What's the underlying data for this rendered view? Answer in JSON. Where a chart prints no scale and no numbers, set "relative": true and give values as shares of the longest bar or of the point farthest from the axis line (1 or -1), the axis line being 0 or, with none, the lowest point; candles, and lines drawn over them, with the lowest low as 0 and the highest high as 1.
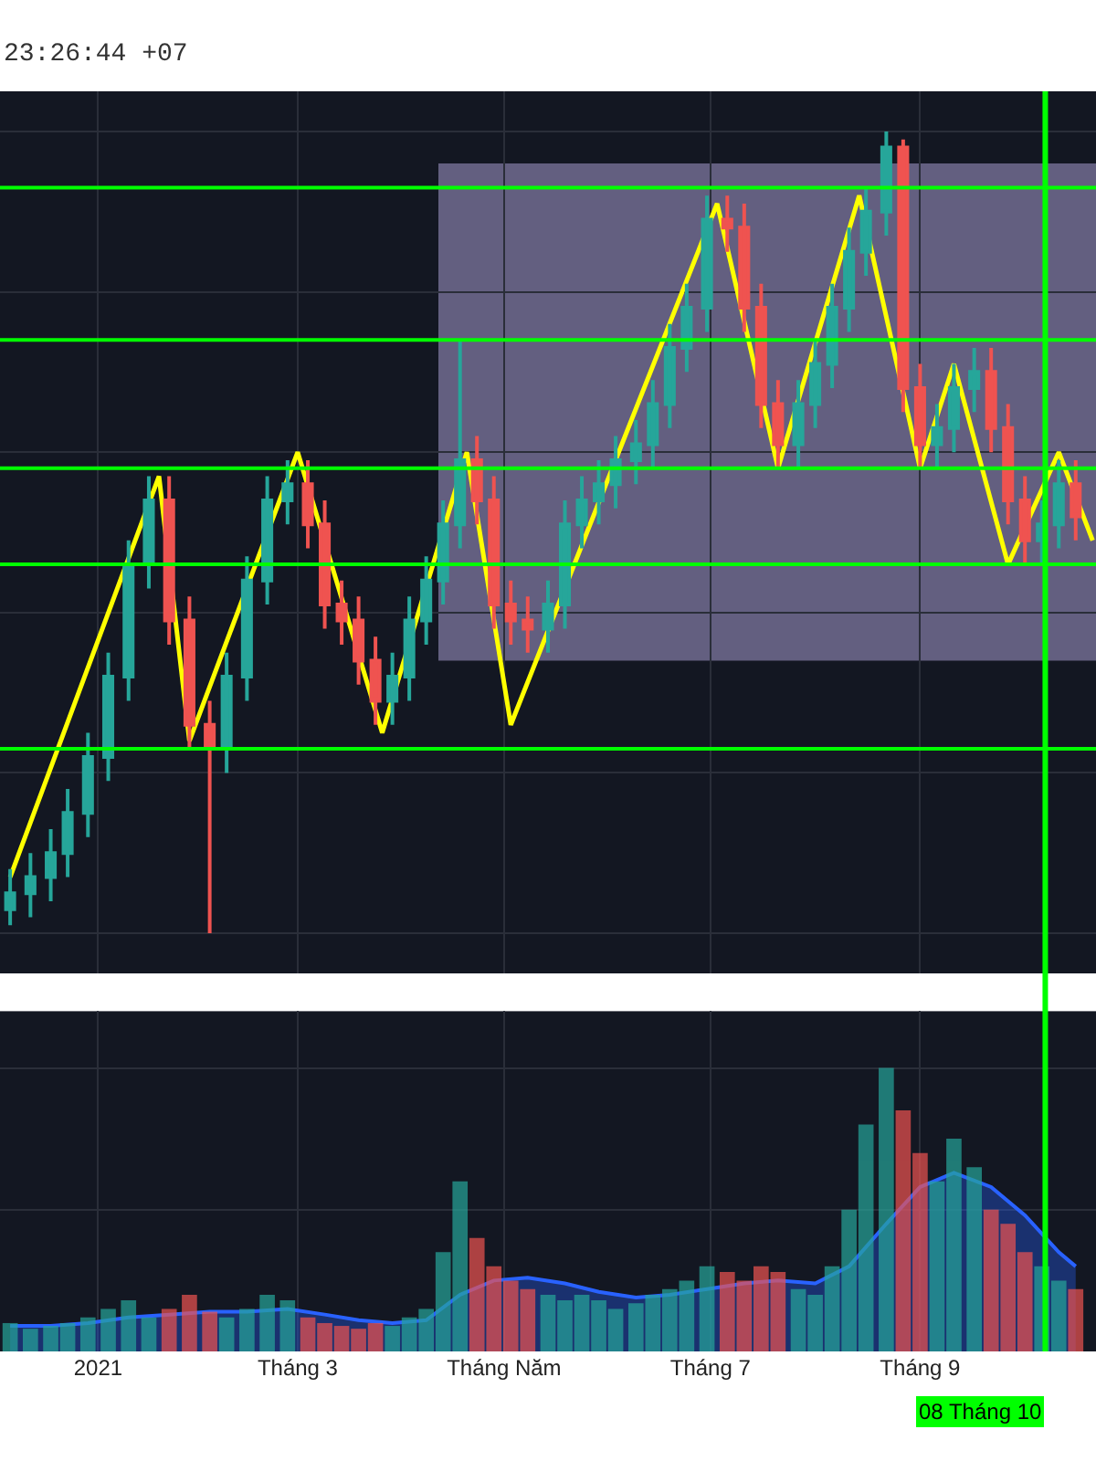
{
  "chart_data": [
    {
      "type": "candlestick",
      "relative": true,
      "grid": true,
      "tick_labels": false,
      "annotations": [
        "23:26:44 +07"
      ],
      "colors": [
        "#26a69a",
        "#26a69a",
        "#26a69a",
        "#26a69a",
        "#26a69a",
        "#26a69a",
        "#26a69a",
        "#26a69a",
        "#ef5350",
        "#ef5350",
        "#ef5350",
        "#26a69a",
        "#26a69a",
        "#26a69a",
        "#26a69a",
        "#ef5350",
        "#ef5350",
        "#ef5350",
        "#ef5350",
        "#ef5350",
        "#26a69a",
        "#26a69a",
        "#26a69a",
        "#26a69a",
        "#26a69a",
        "#ef5350",
        "#ef5350",
        "#ef5350",
        "#ef5350",
        "#26a69a",
        "#26a69a",
        "#26a69a",
        "#26a69a",
        "#26a69a",
        "#26a69a",
        "#26a69a",
        "#26a69a",
        "#26a69a",
        "#26a69a",
        "#ef5350",
        "#ef5350",
        "#ef5350",
        "#ef5350",
        "#26a69a",
        "#26a69a",
        "#26a69a",
        "#26a69a",
        "#26a69a",
        "#26a69a",
        "#ef5350",
        "#ef5350",
        "#26a69a",
        "#26a69a",
        "#26a69a",
        "#ef5350",
        "#ef5350",
        "#ef5350",
        "#26a69a",
        "#26a69a",
        "#ef5350"
      ],
      "x": [
        "2020-12-06",
        "2020-12-12",
        "2020-12-18",
        "2020-12-23",
        "2020-12-29",
        "2021-01-04",
        "2021-01-10",
        "2021-01-16",
        "2021-01-22",
        "2021-01-28",
        "2021-02-03",
        "2021-02-08",
        "2021-02-14",
        "2021-02-20",
        "2021-02-26",
        "2021-03-04",
        "2021-03-09",
        "2021-03-14",
        "2021-03-19",
        "2021-03-24",
        "2021-03-29",
        "2021-04-03",
        "2021-04-08",
        "2021-04-13",
        "2021-04-18",
        "2021-04-23",
        "2021-04-28",
        "2021-05-03",
        "2021-05-08",
        "2021-05-14",
        "2021-05-19",
        "2021-05-24",
        "2021-05-29",
        "2021-06-03",
        "2021-06-09",
        "2021-06-14",
        "2021-06-19",
        "2021-06-24",
        "2021-06-30",
        "2021-07-06",
        "2021-07-11",
        "2021-07-16",
        "2021-07-21",
        "2021-07-27",
        "2021-08-01",
        "2021-08-06",
        "2021-08-11",
        "2021-08-16",
        "2021-08-22",
        "2021-08-27",
        "2021-09-01",
        "2021-09-06",
        "2021-09-11",
        "2021-09-17",
        "2021-09-22",
        "2021-09-27",
        "2021-10-02",
        "2021-10-07",
        "2021-10-12",
        "2021-10-17"
      ],
      "xlim": [
        "2020-12-03",
        "2021-10-23"
      ],
      "ohlc": [
        [
          0.03,
          0.08,
          0.01,
          0.05
        ],
        [
          0.05,
          0.1,
          0.02,
          0.07
        ],
        [
          0.07,
          0.13,
          0.04,
          0.1
        ],
        [
          0.1,
          0.18,
          0.07,
          0.15
        ],
        [
          0.15,
          0.25,
          0.12,
          0.22
        ],
        [
          0.22,
          0.35,
          0.19,
          0.32
        ],
        [
          0.32,
          0.49,
          0.29,
          0.46
        ],
        [
          0.46,
          0.57,
          0.43,
          0.54
        ],
        [
          0.54,
          0.57,
          0.36,
          0.39
        ],
        [
          0.39,
          0.42,
          0.23,
          0.26
        ],
        [
          0.26,
          0.29,
          0.0,
          0.23
        ],
        [
          0.23,
          0.35,
          0.2,
          0.32
        ],
        [
          0.32,
          0.47,
          0.29,
          0.44
        ],
        [
          0.44,
          0.57,
          0.41,
          0.54
        ],
        [
          0.54,
          0.59,
          0.51,
          0.56
        ],
        [
          0.56,
          0.59,
          0.48,
          0.51
        ],
        [
          0.51,
          0.54,
          0.38,
          0.41
        ],
        [
          0.41,
          0.44,
          0.36,
          0.39
        ],
        [
          0.39,
          0.42,
          0.31,
          0.34
        ],
        [
          0.34,
          0.37,
          0.26,
          0.29
        ],
        [
          0.29,
          0.35,
          0.26,
          0.32
        ],
        [
          0.32,
          0.42,
          0.29,
          0.39
        ],
        [
          0.39,
          0.47,
          0.36,
          0.44
        ],
        [
          0.44,
          0.54,
          0.41,
          0.51
        ],
        [
          0.51,
          0.74,
          0.48,
          0.59
        ],
        [
          0.59,
          0.62,
          0.51,
          0.54
        ],
        [
          0.54,
          0.57,
          0.38,
          0.41
        ],
        [
          0.41,
          0.44,
          0.36,
          0.39
        ],
        [
          0.39,
          0.42,
          0.35,
          0.38
        ],
        [
          0.38,
          0.44,
          0.35,
          0.41
        ],
        [
          0.41,
          0.54,
          0.38,
          0.51
        ],
        [
          0.51,
          0.57,
          0.48,
          0.54
        ],
        [
          0.54,
          0.59,
          0.51,
          0.56
        ],
        [
          0.56,
          0.62,
          0.53,
          0.59
        ],
        [
          0.59,
          0.64,
          0.56,
          0.61
        ],
        [
          0.61,
          0.69,
          0.58,
          0.66
        ],
        [
          0.66,
          0.76,
          0.63,
          0.73
        ],
        [
          0.73,
          0.81,
          0.7,
          0.78
        ],
        [
          0.78,
          0.92,
          0.75,
          0.89
        ],
        [
          0.89,
          0.92,
          0.85,
          0.88
        ],
        [
          0.88,
          0.91,
          0.75,
          0.78
        ],
        [
          0.78,
          0.81,
          0.63,
          0.66
        ],
        [
          0.66,
          0.69,
          0.58,
          0.61
        ],
        [
          0.61,
          0.69,
          0.58,
          0.66
        ],
        [
          0.66,
          0.74,
          0.63,
          0.71
        ],
        [
          0.71,
          0.81,
          0.68,
          0.78
        ],
        [
          0.78,
          0.88,
          0.75,
          0.85
        ],
        [
          0.85,
          0.93,
          0.82,
          0.9
        ],
        [
          0.9,
          1.0,
          0.87,
          0.98
        ],
        [
          0.98,
          0.99,
          0.65,
          0.68
        ],
        [
          0.68,
          0.71,
          0.58,
          0.61
        ],
        [
          0.61,
          0.66,
          0.58,
          0.63
        ],
        [
          0.63,
          0.71,
          0.6,
          0.68
        ],
        [
          0.68,
          0.73,
          0.65,
          0.7
        ],
        [
          0.7,
          0.73,
          0.6,
          0.63
        ],
        [
          0.63,
          0.66,
          0.51,
          0.54
        ],
        [
          0.54,
          0.57,
          0.46,
          0.49
        ],
        [
          0.49,
          0.54,
          0.46,
          0.51
        ],
        [
          0.51,
          0.59,
          0.48,
          0.56
        ],
        [
          0.56,
          0.59,
          0.49,
          0.52
        ]
      ],
      "series": [
        {
          "type": "line",
          "color": "#ffff00",
          "x": [
            "2020-12-06",
            "2021-01-19",
            "2021-01-28",
            "2021-03-01",
            "2021-03-26",
            "2021-04-20",
            "2021-05-03",
            "2021-07-03",
            "2021-07-21",
            "2021-08-14",
            "2021-09-01",
            "2021-09-11",
            "2021-09-27",
            "2021-10-12",
            "2021-10-22"
          ],
          "values": [
            0.07,
            0.57,
            0.24,
            0.6,
            0.25,
            0.6,
            0.26,
            0.91,
            0.58,
            0.92,
            0.58,
            0.71,
            0.46,
            0.6,
            0.49
          ]
        }
      ],
      "ref_lines": [
        {
          "axis": "y",
          "value": 0.93,
          "color": "#00ff00"
        },
        {
          "axis": "y",
          "value": 0.74,
          "color": "#00ff00"
        },
        {
          "axis": "y",
          "value": 0.58,
          "color": "#00ff00"
        },
        {
          "axis": "y",
          "value": 0.46,
          "color": "#00ff00"
        },
        {
          "axis": "y",
          "value": 0.23,
          "color": "#00ff00"
        },
        {
          "axis": "x",
          "value": "2021-10-08",
          "label": "08 Tháng 10",
          "color": "#00ff00"
        }
      ],
      "bands": [
        {
          "axis": "y",
          "from": 0.34,
          "to": 0.96,
          "color": "#9a8fc0"
        }
      ]
    },
    {
      "type": "bar",
      "relative": true,
      "grid": true,
      "tick_labels": "x",
      "x": [
        "2020-12-06",
        "2020-12-12",
        "2020-12-18",
        "2020-12-23",
        "2020-12-29",
        "2021-01-04",
        "2021-01-10",
        "2021-01-16",
        "2021-01-22",
        "2021-01-28",
        "2021-02-03",
        "2021-02-08",
        "2021-02-14",
        "2021-02-20",
        "2021-02-26",
        "2021-03-04",
        "2021-03-09",
        "2021-03-14",
        "2021-03-19",
        "2021-03-24",
        "2021-03-29",
        "2021-04-03",
        "2021-04-08",
        "2021-04-13",
        "2021-04-18",
        "2021-04-23",
        "2021-04-28",
        "2021-05-03",
        "2021-05-08",
        "2021-05-14",
        "2021-05-19",
        "2021-05-24",
        "2021-05-29",
        "2021-06-03",
        "2021-06-09",
        "2021-06-14",
        "2021-06-19",
        "2021-06-24",
        "2021-06-30",
        "2021-07-06",
        "2021-07-11",
        "2021-07-16",
        "2021-07-21",
        "2021-07-27",
        "2021-08-01",
        "2021-08-06",
        "2021-08-11",
        "2021-08-16",
        "2021-08-22",
        "2021-08-27",
        "2021-09-01",
        "2021-09-06",
        "2021-09-11",
        "2021-09-17",
        "2021-09-22",
        "2021-09-27",
        "2021-10-02",
        "2021-10-07",
        "2021-10-12",
        "2021-10-17"
      ],
      "xlim": [
        "2020-12-03",
        "2021-10-23"
      ],
      "xticks": [
        {
          "value": "2021-01-01",
          "label": "2021"
        },
        {
          "value": "2021-03-01",
          "label": "Tháng 3"
        },
        {
          "value": "2021-05-01",
          "label": "Tháng Năm"
        },
        {
          "value": "2021-07-01",
          "label": "Tháng 7"
        },
        {
          "value": "2021-09-01",
          "label": "Tháng 9"
        }
      ],
      "series": [
        {
          "type": "bar",
          "values": [
            0.1,
            0.08,
            0.09,
            0.1,
            0.12,
            0.15,
            0.18,
            0.12,
            0.15,
            0.2,
            0.14,
            0.12,
            0.15,
            0.2,
            0.18,
            0.12,
            0.1,
            0.09,
            0.08,
            0.1,
            0.09,
            0.12,
            0.15,
            0.35,
            0.6,
            0.4,
            0.3,
            0.25,
            0.22,
            0.2,
            0.18,
            0.2,
            0.18,
            0.15,
            0.17,
            0.2,
            0.22,
            0.25,
            0.3,
            0.28,
            0.25,
            0.3,
            0.28,
            0.22,
            0.2,
            0.3,
            0.5,
            0.8,
            1.0,
            0.85,
            0.7,
            0.6,
            0.75,
            0.65,
            0.5,
            0.45,
            0.35,
            0.3,
            0.25,
            0.22
          ],
          "colors": [
            "#26a69a",
            "#26a69a",
            "#26a69a",
            "#26a69a",
            "#26a69a",
            "#26a69a",
            "#26a69a",
            "#26a69a",
            "#ef5350",
            "#ef5350",
            "#ef5350",
            "#26a69a",
            "#26a69a",
            "#26a69a",
            "#26a69a",
            "#ef5350",
            "#ef5350",
            "#ef5350",
            "#ef5350",
            "#ef5350",
            "#26a69a",
            "#26a69a",
            "#26a69a",
            "#26a69a",
            "#26a69a",
            "#ef5350",
            "#ef5350",
            "#ef5350",
            "#ef5350",
            "#26a69a",
            "#26a69a",
            "#26a69a",
            "#26a69a",
            "#26a69a",
            "#26a69a",
            "#26a69a",
            "#26a69a",
            "#26a69a",
            "#26a69a",
            "#ef5350",
            "#ef5350",
            "#ef5350",
            "#ef5350",
            "#26a69a",
            "#26a69a",
            "#26a69a",
            "#26a69a",
            "#26a69a",
            "#26a69a",
            "#ef5350",
            "#ef5350",
            "#26a69a",
            "#26a69a",
            "#26a69a",
            "#ef5350",
            "#ef5350",
            "#ef5350",
            "#26a69a",
            "#26a69a",
            "#ef5350"
          ]
        },
        {
          "type": "area",
          "color": "#2962ff",
          "x": [
            "2020-12-06",
            "2020-12-18",
            "2020-12-29",
            "2021-01-10",
            "2021-01-22",
            "2021-02-03",
            "2021-02-14",
            "2021-02-26",
            "2021-03-09",
            "2021-03-19",
            "2021-03-29",
            "2021-04-08",
            "2021-04-18",
            "2021-04-28",
            "2021-05-08",
            "2021-05-19",
            "2021-05-29",
            "2021-06-09",
            "2021-06-19",
            "2021-06-30",
            "2021-07-11",
            "2021-07-21",
            "2021-08-01",
            "2021-08-11",
            "2021-08-22",
            "2021-09-01",
            "2021-09-11",
            "2021-09-22",
            "2021-10-02",
            "2021-10-12",
            "2021-10-17"
          ],
          "values": [
            0.09,
            0.09,
            0.1,
            0.12,
            0.13,
            0.14,
            0.14,
            0.15,
            0.13,
            0.11,
            0.1,
            0.11,
            0.2,
            0.25,
            0.26,
            0.24,
            0.21,
            0.19,
            0.2,
            0.22,
            0.24,
            0.25,
            0.24,
            0.3,
            0.45,
            0.58,
            0.63,
            0.58,
            0.48,
            0.35,
            0.3
          ]
        }
      ]
    }
  ]
}
